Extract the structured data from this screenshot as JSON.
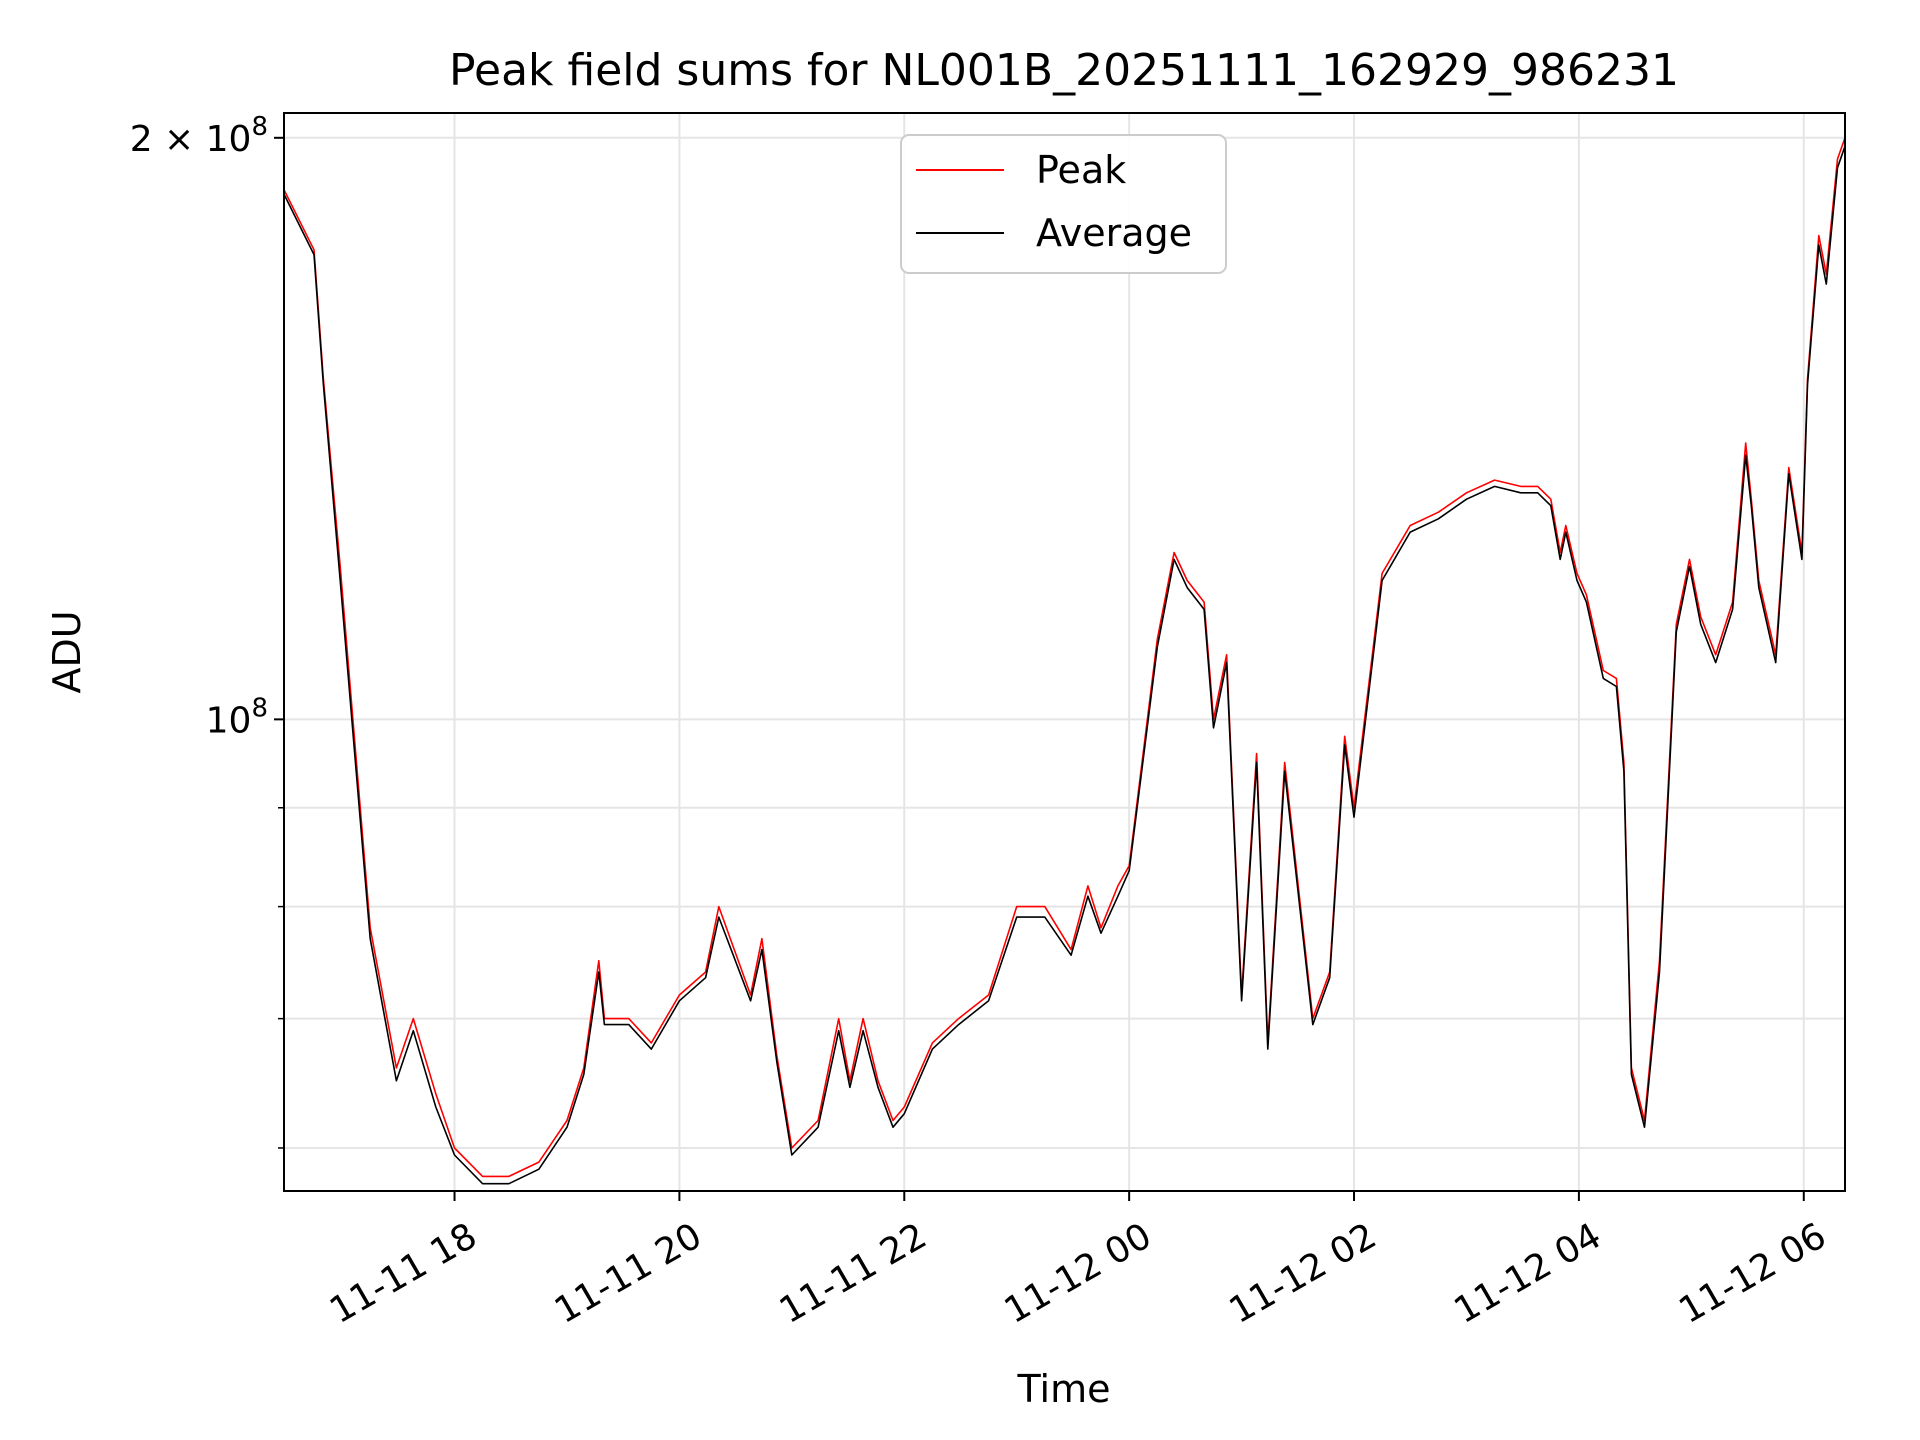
{
  "chart_data": {
    "type": "line",
    "title": "Peak field sums for NL001B_20251111_162929_986231",
    "xlabel": "Time",
    "ylabel": "ADU",
    "y_scale": "log",
    "ylim": [
      57000000,
      206000000
    ],
    "xlim": [
      "2025-11-11 16:29",
      "2025-11-12 06:22"
    ],
    "grid": true,
    "legend_position": "top-center",
    "x_ticks": [
      {
        "label": "11-11 18",
        "time": "2025-11-11 18:00"
      },
      {
        "label": "11-11 20",
        "time": "2025-11-11 20:00"
      },
      {
        "label": "11-11 22",
        "time": "2025-11-11 22:00"
      },
      {
        "label": "11-12 00",
        "time": "2025-11-12 00:00"
      },
      {
        "label": "11-12 02",
        "time": "2025-11-12 02:00"
      },
      {
        "label": "11-12 04",
        "time": "2025-11-12 04:00"
      },
      {
        "label": "11-12 06",
        "time": "2025-11-12 06:00"
      }
    ],
    "y_ticks_major": [
      {
        "value": 100000000,
        "base": "10",
        "exp": "8",
        "coef": ""
      },
      {
        "value": 200000000,
        "base": "10",
        "exp": "8",
        "coef": "2 × "
      }
    ],
    "y_ticks_minor": [
      60000000,
      70000000,
      80000000,
      90000000
    ],
    "series": [
      {
        "name": "Peak",
        "color": "#ff0000",
        "x": [
          "2025-11-11 16:29",
          "2025-11-11 16:45",
          "2025-11-11 16:50",
          "2025-11-11 16:59",
          "2025-11-11 17:15",
          "2025-11-11 17:29",
          "2025-11-11 17:38",
          "2025-11-11 17:50",
          "2025-11-11 18:00",
          "2025-11-11 18:15",
          "2025-11-11 18:29",
          "2025-11-11 18:45",
          "2025-11-11 19:00",
          "2025-11-11 19:09",
          "2025-11-11 19:17",
          "2025-11-11 19:20",
          "2025-11-11 19:33",
          "2025-11-11 19:45",
          "2025-11-11 20:00",
          "2025-11-11 20:14",
          "2025-11-11 20:21",
          "2025-11-11 20:38",
          "2025-11-11 20:44",
          "2025-11-11 20:52",
          "2025-11-11 21:00",
          "2025-11-11 21:14",
          "2025-11-11 21:25",
          "2025-11-11 21:31",
          "2025-11-11 21:38",
          "2025-11-11 21:46",
          "2025-11-11 21:54",
          "2025-11-11 22:00",
          "2025-11-11 22:15",
          "2025-11-11 22:29",
          "2025-11-11 22:45",
          "2025-11-11 23:00",
          "2025-11-11 23:15",
          "2025-11-11 23:29",
          "2025-11-11 23:38",
          "2025-11-11 23:45",
          "2025-11-11 23:54",
          "2025-11-12 00:00",
          "2025-11-12 00:15",
          "2025-11-12 00:24",
          "2025-11-12 00:31",
          "2025-11-12 00:40",
          "2025-11-12 00:45",
          "2025-11-12 00:52",
          "2025-11-12 01:00",
          "2025-11-12 01:08",
          "2025-11-12 01:14",
          "2025-11-12 01:23",
          "2025-11-12 01:38",
          "2025-11-12 01:47",
          "2025-11-12 01:55",
          "2025-11-12 02:00",
          "2025-11-12 02:15",
          "2025-11-12 02:30",
          "2025-11-12 02:45",
          "2025-11-12 03:00",
          "2025-11-12 03:15",
          "2025-11-12 03:29",
          "2025-11-12 03:38",
          "2025-11-12 03:45",
          "2025-11-12 03:50",
          "2025-11-12 03:53",
          "2025-11-12 03:59",
          "2025-11-12 04:04",
          "2025-11-12 04:13",
          "2025-11-12 04:20",
          "2025-11-12 04:24",
          "2025-11-12 04:28",
          "2025-11-12 04:35",
          "2025-11-12 04:43",
          "2025-11-12 04:52",
          "2025-11-12 04:59",
          "2025-11-12 05:05",
          "2025-11-12 05:13",
          "2025-11-12 05:22",
          "2025-11-12 05:29",
          "2025-11-12 05:32",
          "2025-11-12 05:36",
          "2025-11-12 05:45",
          "2025-11-12 05:52",
          "2025-11-12 05:59",
          "2025-11-12 06:02",
          "2025-11-12 06:08",
          "2025-11-12 06:12",
          "2025-11-12 06:18",
          "2025-11-12 06:22"
        ],
        "y": [
          188000000,
          175000000,
          150000000,
          120000000,
          78000000,
          66000000,
          70000000,
          64000000,
          60000000,
          58000000,
          58000000,
          59000000,
          62000000,
          66000000,
          75000000,
          70000000,
          70000000,
          68000000,
          72000000,
          74000000,
          80000000,
          72000000,
          77000000,
          67000000,
          60000000,
          62000000,
          70000000,
          65000000,
          70000000,
          65000000,
          62000000,
          63000000,
          68000000,
          70000000,
          72000000,
          80000000,
          80000000,
          76000000,
          82000000,
          78000000,
          82000000,
          84000000,
          110000000,
          122000000,
          118000000,
          115000000,
          100000000,
          108000000,
          72000000,
          96000000,
          68000000,
          95000000,
          70000000,
          74000000,
          98000000,
          90000000,
          119000000,
          126000000,
          128000000,
          131000000,
          133000000,
          132000000,
          132000000,
          130000000,
          122000000,
          126000000,
          119000000,
          116000000,
          106000000,
          105000000,
          95000000,
          66000000,
          62000000,
          75000000,
          112000000,
          121000000,
          113000000,
          108000000,
          115000000,
          139000000,
          130000000,
          118000000,
          108000000,
          135000000,
          122000000,
          150000000,
          178000000,
          170000000,
          195000000,
          200000000
        ]
      },
      {
        "name": "Average",
        "color": "#000000",
        "x": [
          "2025-11-11 16:29",
          "2025-11-11 16:45",
          "2025-11-11 16:50",
          "2025-11-11 16:59",
          "2025-11-11 17:15",
          "2025-11-11 17:29",
          "2025-11-11 17:38",
          "2025-11-11 17:50",
          "2025-11-11 18:00",
          "2025-11-11 18:15",
          "2025-11-11 18:29",
          "2025-11-11 18:45",
          "2025-11-11 19:00",
          "2025-11-11 19:09",
          "2025-11-11 19:17",
          "2025-11-11 19:20",
          "2025-11-11 19:33",
          "2025-11-11 19:45",
          "2025-11-11 20:00",
          "2025-11-11 20:14",
          "2025-11-11 20:21",
          "2025-11-11 20:38",
          "2025-11-11 20:44",
          "2025-11-11 20:52",
          "2025-11-11 21:00",
          "2025-11-11 21:14",
          "2025-11-11 21:25",
          "2025-11-11 21:31",
          "2025-11-11 21:38",
          "2025-11-11 21:46",
          "2025-11-11 21:54",
          "2025-11-11 22:00",
          "2025-11-11 22:15",
          "2025-11-11 22:29",
          "2025-11-11 22:45",
          "2025-11-11 23:00",
          "2025-11-11 23:15",
          "2025-11-11 23:29",
          "2025-11-11 23:38",
          "2025-11-11 23:45",
          "2025-11-11 23:54",
          "2025-11-12 00:00",
          "2025-11-12 00:15",
          "2025-11-12 00:24",
          "2025-11-12 00:31",
          "2025-11-12 00:40",
          "2025-11-12 00:45",
          "2025-11-12 00:52",
          "2025-11-12 01:00",
          "2025-11-12 01:08",
          "2025-11-12 01:14",
          "2025-11-12 01:23",
          "2025-11-12 01:38",
          "2025-11-12 01:47",
          "2025-11-12 01:55",
          "2025-11-12 02:00",
          "2025-11-12 02:15",
          "2025-11-12 02:30",
          "2025-11-12 02:45",
          "2025-11-12 03:00",
          "2025-11-12 03:15",
          "2025-11-12 03:29",
          "2025-11-12 03:38",
          "2025-11-12 03:45",
          "2025-11-12 03:50",
          "2025-11-12 03:53",
          "2025-11-12 03:59",
          "2025-11-12 04:04",
          "2025-11-12 04:13",
          "2025-11-12 04:20",
          "2025-11-12 04:24",
          "2025-11-12 04:28",
          "2025-11-12 04:35",
          "2025-11-12 04:43",
          "2025-11-12 04:52",
          "2025-11-12 04:59",
          "2025-11-12 05:05",
          "2025-11-12 05:13",
          "2025-11-12 05:22",
          "2025-11-12 05:29",
          "2025-11-12 05:32",
          "2025-11-12 05:36",
          "2025-11-12 05:45",
          "2025-11-12 05:52",
          "2025-11-12 05:59",
          "2025-11-12 06:02",
          "2025-11-12 06:08",
          "2025-11-12 06:12",
          "2025-11-12 06:18",
          "2025-11-12 06:22"
        ],
        "y": [
          187000000,
          174000000,
          149000000,
          118000000,
          77000000,
          65000000,
          69000000,
          63000000,
          59500000,
          57500000,
          57500000,
          58500000,
          61500000,
          65500000,
          74000000,
          69500000,
          69500000,
          67500000,
          71500000,
          73500000,
          79000000,
          71500000,
          76000000,
          66500000,
          59500000,
          61500000,
          69000000,
          64500000,
          69000000,
          64500000,
          61500000,
          62500000,
          67500000,
          69500000,
          71500000,
          79000000,
          79000000,
          75500000,
          81000000,
          77500000,
          81000000,
          83500000,
          109000000,
          121000000,
          117000000,
          114000000,
          99000000,
          107000000,
          71500000,
          95000000,
          67500000,
          94000000,
          69500000,
          73500000,
          97000000,
          89000000,
          118000000,
          125000000,
          127000000,
          130000000,
          132000000,
          131000000,
          131000000,
          129000000,
          121000000,
          125000000,
          118000000,
          115000000,
          105000000,
          104000000,
          94000000,
          65500000,
          61500000,
          74000000,
          111000000,
          120000000,
          112000000,
          107000000,
          114000000,
          137000000,
          129000000,
          117000000,
          107000000,
          134000000,
          121000000,
          149000000,
          176000000,
          168000000,
          193000000,
          198000000
        ]
      }
    ]
  }
}
